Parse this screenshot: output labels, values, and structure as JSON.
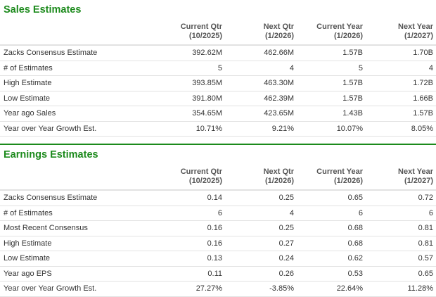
{
  "colors": {
    "accent": "#1c8a1c"
  },
  "sales": {
    "title": "Sales Estimates",
    "headers": [
      [
        "Current Qtr",
        "(10/2025)"
      ],
      [
        "Next Qtr",
        "(1/2026)"
      ],
      [
        "Current Year",
        "(1/2026)"
      ],
      [
        "Next Year",
        "(1/2027)"
      ]
    ],
    "rows": [
      [
        "Zacks Consensus Estimate",
        "392.62M",
        "462.66M",
        "1.57B",
        "1.70B"
      ],
      [
        "# of Estimates",
        "5",
        "4",
        "5",
        "4"
      ],
      [
        "High Estimate",
        "393.85M",
        "463.30M",
        "1.57B",
        "1.72B"
      ],
      [
        "Low Estimate",
        "391.80M",
        "462.39M",
        "1.57B",
        "1.66B"
      ],
      [
        "Year ago Sales",
        "354.65M",
        "423.65M",
        "1.43B",
        "1.57B"
      ],
      [
        "Year over Year Growth Est.",
        "10.71%",
        "9.21%",
        "10.07%",
        "8.05%"
      ]
    ]
  },
  "earnings": {
    "title": "Earnings Estimates",
    "headers": [
      [
        "Current Qtr",
        "(10/2025)"
      ],
      [
        "Next Qtr",
        "(1/2026)"
      ],
      [
        "Current Year",
        "(1/2026)"
      ],
      [
        "Next Year",
        "(1/2027)"
      ]
    ],
    "rows": [
      [
        "Zacks Consensus Estimate",
        "0.14",
        "0.25",
        "0.65",
        "0.72"
      ],
      [
        "# of Estimates",
        "6",
        "4",
        "6",
        "6"
      ],
      [
        "Most Recent Consensus",
        "0.16",
        "0.25",
        "0.68",
        "0.81"
      ],
      [
        "High Estimate",
        "0.16",
        "0.27",
        "0.68",
        "0.81"
      ],
      [
        "Low Estimate",
        "0.13",
        "0.24",
        "0.62",
        "0.57"
      ],
      [
        "Year ago EPS",
        "0.11",
        "0.26",
        "0.53",
        "0.65"
      ],
      [
        "Year over Year Growth Est.",
        "27.27%",
        "-3.85%",
        "22.64%",
        "11.28%"
      ]
    ]
  }
}
